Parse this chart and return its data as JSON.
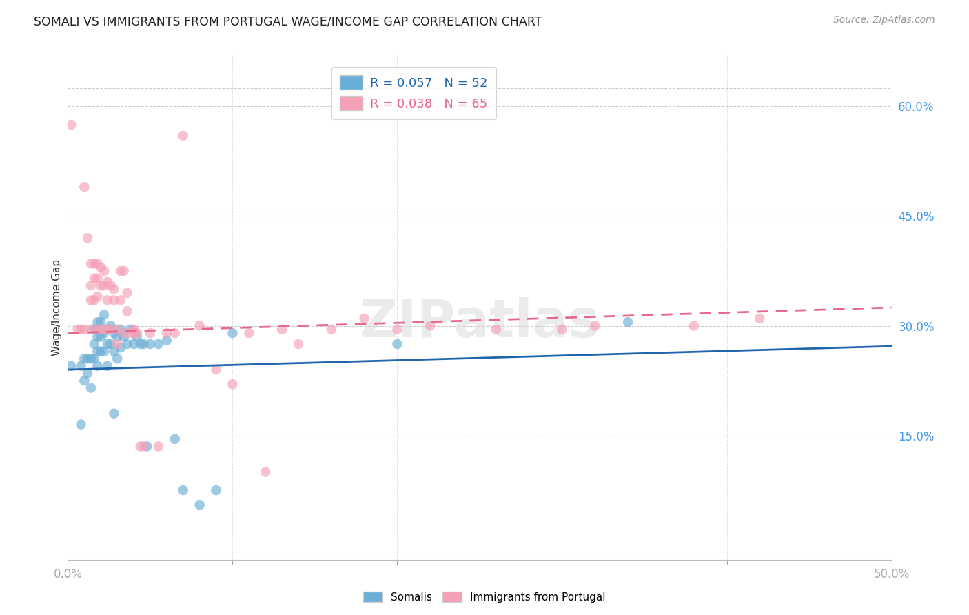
{
  "title": "SOMALI VS IMMIGRANTS FROM PORTUGAL WAGE/INCOME GAP CORRELATION CHART",
  "source": "Source: ZipAtlas.com",
  "ylabel": "Wage/Income Gap",
  "right_yticks": [
    "60.0%",
    "45.0%",
    "30.0%",
    "15.0%"
  ],
  "right_ytick_vals": [
    0.6,
    0.45,
    0.3,
    0.15
  ],
  "xlim": [
    0.0,
    0.5
  ],
  "ylim": [
    -0.02,
    0.67
  ],
  "somali_R": 0.057,
  "somali_N": 52,
  "portugal_R": 0.038,
  "portugal_N": 65,
  "somali_color": "#6aaed6",
  "portugal_color": "#f4a0b5",
  "somali_line_color": "#2166ac",
  "portugal_line_color": "#e8688a",
  "watermark": "ZIPatlas",
  "somali_x": [
    0.002,
    0.008,
    0.008,
    0.01,
    0.01,
    0.012,
    0.012,
    0.014,
    0.014,
    0.016,
    0.016,
    0.016,
    0.018,
    0.018,
    0.018,
    0.018,
    0.02,
    0.02,
    0.02,
    0.022,
    0.022,
    0.022,
    0.024,
    0.024,
    0.024,
    0.026,
    0.026,
    0.028,
    0.028,
    0.028,
    0.03,
    0.03,
    0.032,
    0.032,
    0.034,
    0.036,
    0.038,
    0.04,
    0.042,
    0.044,
    0.046,
    0.048,
    0.05,
    0.055,
    0.06,
    0.065,
    0.07,
    0.08,
    0.09,
    0.1,
    0.2,
    0.34
  ],
  "somali_y": [
    0.245,
    0.245,
    0.165,
    0.255,
    0.225,
    0.255,
    0.235,
    0.255,
    0.215,
    0.295,
    0.275,
    0.255,
    0.305,
    0.285,
    0.265,
    0.245,
    0.305,
    0.285,
    0.265,
    0.315,
    0.29,
    0.265,
    0.295,
    0.275,
    0.245,
    0.3,
    0.275,
    0.29,
    0.265,
    0.18,
    0.285,
    0.255,
    0.295,
    0.27,
    0.285,
    0.275,
    0.295,
    0.275,
    0.285,
    0.275,
    0.275,
    0.135,
    0.275,
    0.275,
    0.28,
    0.145,
    0.075,
    0.055,
    0.075,
    0.29,
    0.275,
    0.305
  ],
  "portugal_x": [
    0.002,
    0.006,
    0.008,
    0.01,
    0.01,
    0.012,
    0.014,
    0.014,
    0.014,
    0.014,
    0.016,
    0.016,
    0.016,
    0.018,
    0.018,
    0.018,
    0.018,
    0.02,
    0.02,
    0.02,
    0.022,
    0.022,
    0.022,
    0.024,
    0.024,
    0.024,
    0.026,
    0.026,
    0.028,
    0.028,
    0.03,
    0.03,
    0.032,
    0.032,
    0.034,
    0.034,
    0.036,
    0.036,
    0.038,
    0.04,
    0.04,
    0.042,
    0.044,
    0.046,
    0.05,
    0.055,
    0.06,
    0.065,
    0.07,
    0.08,
    0.09,
    0.1,
    0.11,
    0.12,
    0.13,
    0.14,
    0.16,
    0.18,
    0.2,
    0.22,
    0.26,
    0.3,
    0.32,
    0.38,
    0.42
  ],
  "portugal_y": [
    0.575,
    0.295,
    0.295,
    0.295,
    0.49,
    0.42,
    0.385,
    0.355,
    0.335,
    0.295,
    0.385,
    0.365,
    0.335,
    0.385,
    0.365,
    0.34,
    0.295,
    0.38,
    0.355,
    0.295,
    0.375,
    0.355,
    0.295,
    0.36,
    0.335,
    0.295,
    0.355,
    0.295,
    0.35,
    0.335,
    0.295,
    0.275,
    0.375,
    0.335,
    0.375,
    0.29,
    0.345,
    0.32,
    0.29,
    0.295,
    0.29,
    0.29,
    0.135,
    0.135,
    0.29,
    0.135,
    0.29,
    0.29,
    0.56,
    0.3,
    0.24,
    0.22,
    0.29,
    0.1,
    0.295,
    0.275,
    0.295,
    0.31,
    0.295,
    0.3,
    0.295,
    0.295,
    0.3,
    0.3,
    0.31
  ]
}
